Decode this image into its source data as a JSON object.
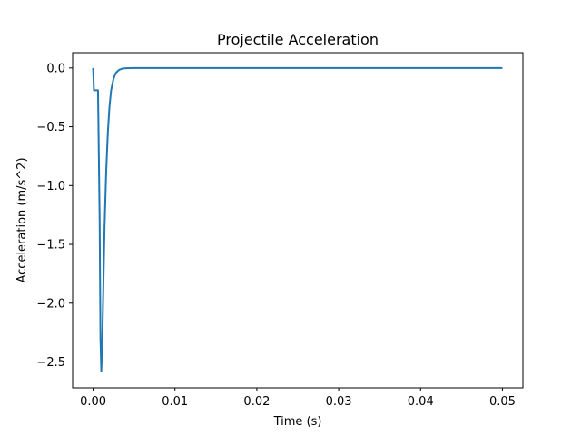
{
  "chart_data": {
    "type": "line",
    "title": "Projectile Acceleration",
    "xlabel": "Time (s)",
    "ylabel": "Acceleration (m/s^2)",
    "xlim": [
      -0.0025,
      0.0525
    ],
    "ylim": [
      -2.72,
      0.13
    ],
    "x_ticks": [
      0.0,
      0.01,
      0.02,
      0.03,
      0.04,
      0.05
    ],
    "x_tick_labels": [
      "0.00",
      "0.01",
      "0.02",
      "0.03",
      "0.04",
      "0.05"
    ],
    "y_ticks": [
      0.0,
      -0.5,
      -1.0,
      -1.5,
      -2.0,
      -2.5
    ],
    "y_tick_labels": [
      "0.0",
      "−0.5",
      "−1.0",
      "−1.5",
      "−2.0",
      "−2.5"
    ],
    "grid": false,
    "line_color": "#1f77b4",
    "series": [
      {
        "x": [
          0.0,
          0.0001,
          0.0002,
          0.0004,
          0.0006,
          0.0008,
          0.0009,
          0.001,
          0.0011,
          0.0012,
          0.0013,
          0.0014,
          0.0016,
          0.0018,
          0.002,
          0.0022,
          0.0025,
          0.0028,
          0.0032,
          0.0036,
          0.004,
          0.005,
          0.01,
          0.02,
          0.03,
          0.04,
          0.05
        ],
        "y": [
          0.0,
          -0.19,
          -0.19,
          -0.19,
          -0.19,
          -1.3,
          -2.3,
          -2.58,
          -2.4,
          -2.05,
          -1.7,
          -1.35,
          -0.88,
          -0.55,
          -0.33,
          -0.19,
          -0.09,
          -0.04,
          -0.015,
          -0.005,
          -0.002,
          0.0,
          0.0,
          0.0,
          0.0,
          0.0,
          0.0
        ]
      }
    ]
  }
}
